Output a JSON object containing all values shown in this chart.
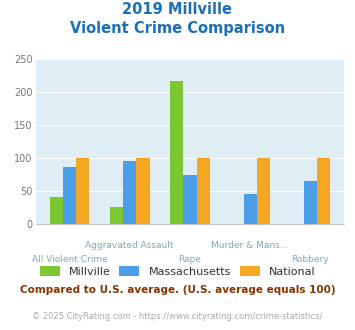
{
  "title_line1": "2019 Millville",
  "title_line2": "Violent Crime Comparison",
  "top_labels": [
    "",
    "Aggravated Assault",
    "",
    "Murder & Mans...",
    ""
  ],
  "bot_labels": [
    "All Violent Crime",
    "",
    "Rape",
    "",
    "Robbery"
  ],
  "millville": [
    42,
    27,
    217,
    0,
    0
  ],
  "massachusetts": [
    87,
    96,
    75,
    46,
    65
  ],
  "national": [
    100,
    100,
    100,
    100,
    100
  ],
  "colors": {
    "millville": "#7dc832",
    "massachusetts": "#4b9fe8",
    "national": "#f5a623"
  },
  "ylim": [
    0,
    250
  ],
  "yticks": [
    0,
    50,
    100,
    150,
    200,
    250
  ],
  "bg_color": "#deeef4",
  "title_color": "#1a6fba",
  "axis_label_color": "#7aaabb",
  "legend_label_color": "#333333",
  "footnote1": "Compared to U.S. average. (U.S. average equals 100)",
  "footnote2": "© 2025 CityRating.com - https://www.cityrating.com/crime-statistics/",
  "footnote1_color": "#883300",
  "footnote2_color": "#aaaaaa"
}
